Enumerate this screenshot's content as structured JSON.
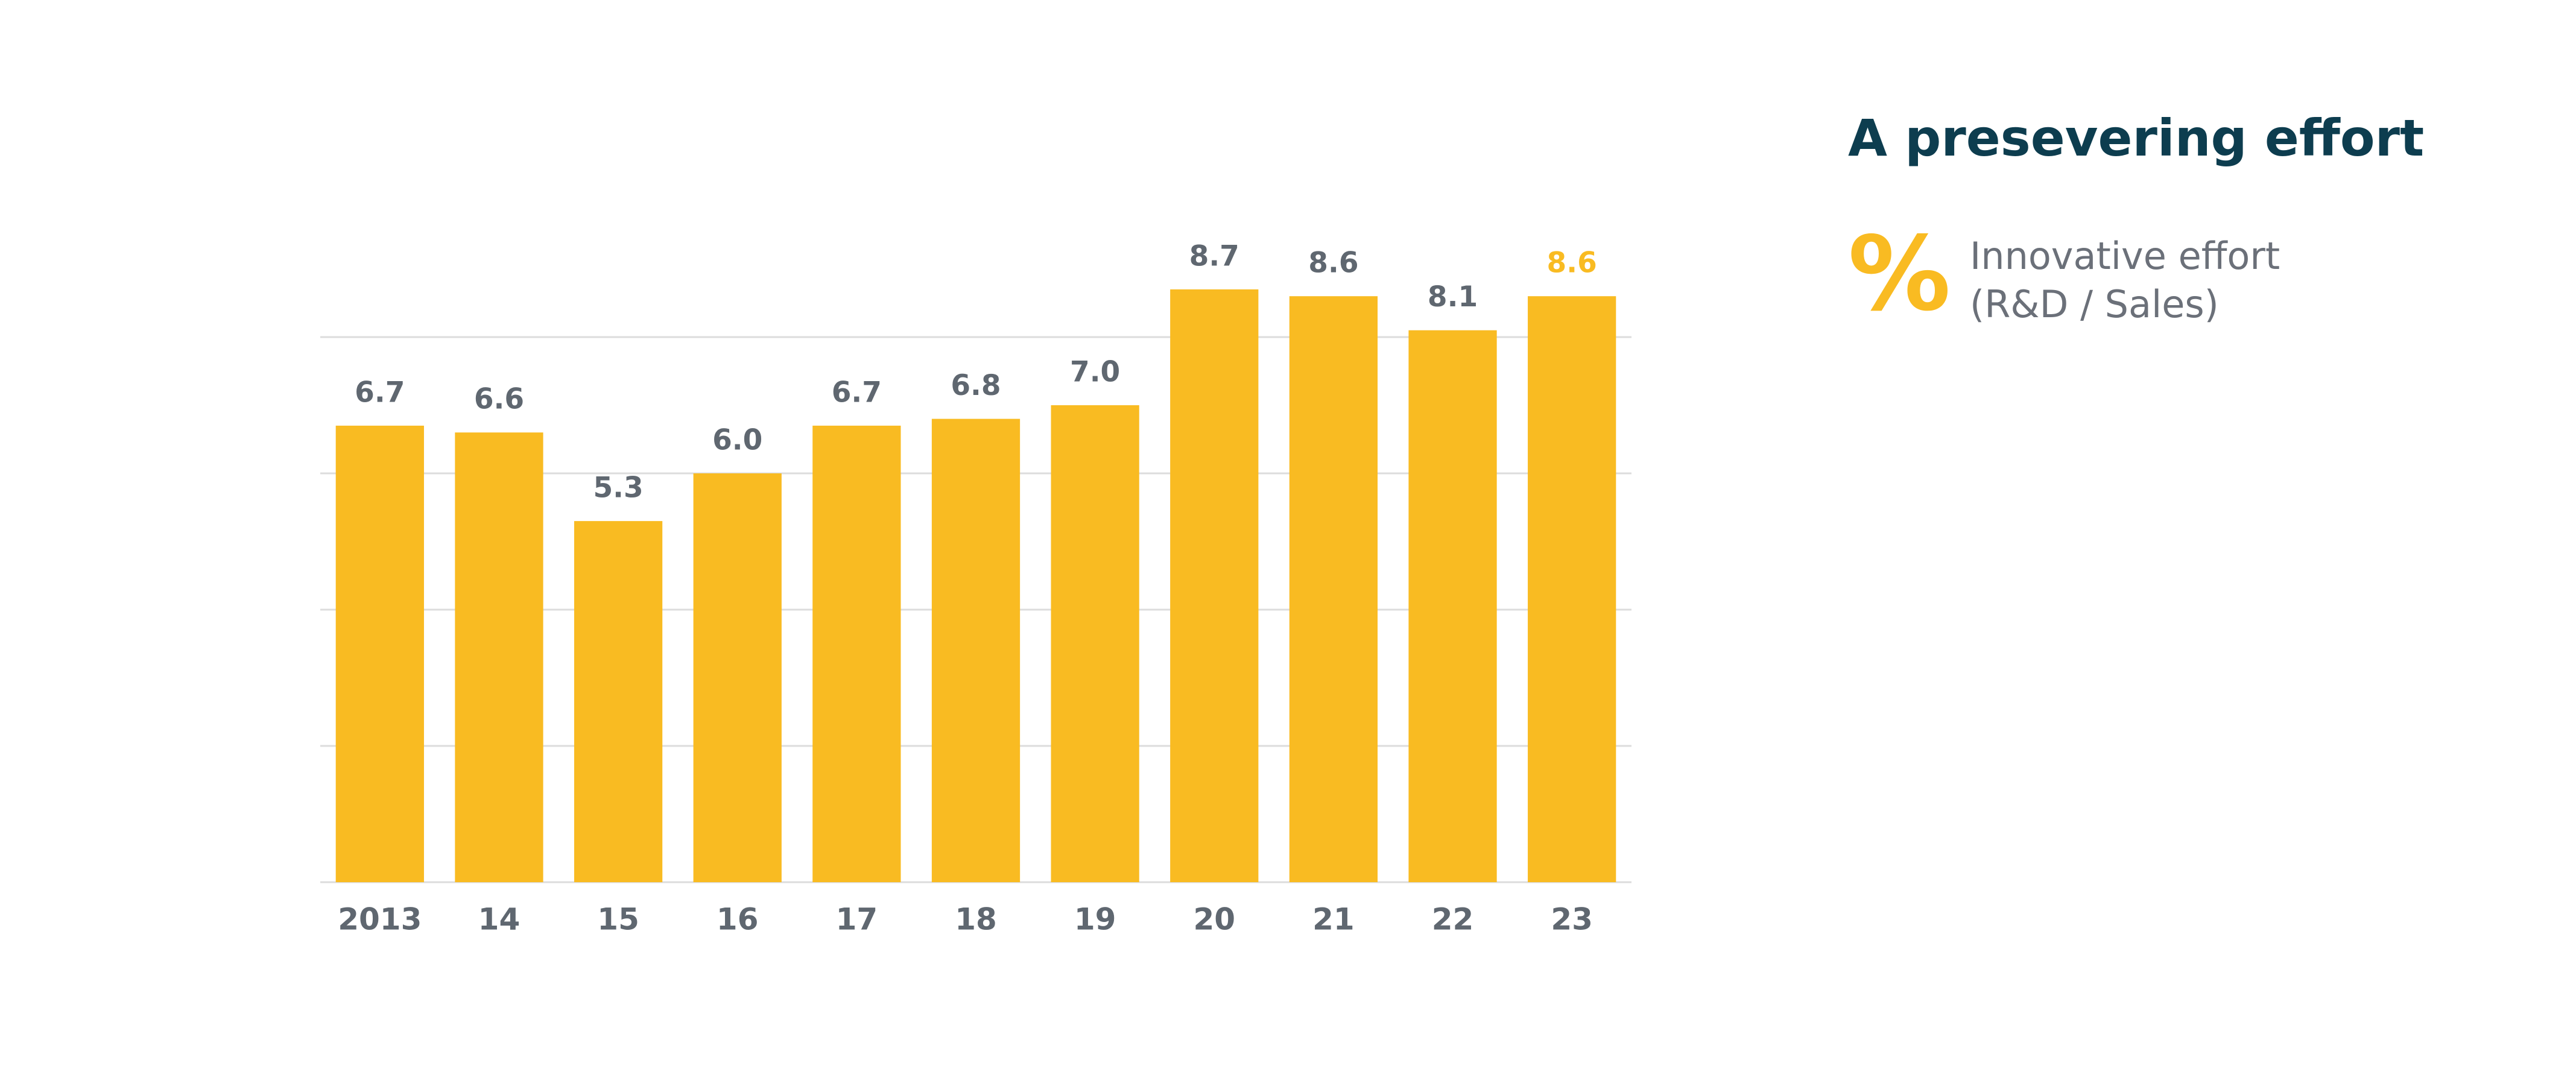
{
  "chart_data": {
    "type": "bar",
    "title": "A presevering effort",
    "unit": "%",
    "categories": [
      "2013",
      "14",
      "15",
      "16",
      "17",
      "18",
      "19",
      "20",
      "21",
      "22",
      "23"
    ],
    "series": [
      {
        "name": "Innovative effort (R&D / Sales)",
        "color": "#f9bb22",
        "values": [
          6.7,
          6.6,
          5.3,
          6.0,
          6.7,
          6.8,
          7.0,
          8.7,
          8.6,
          8.1,
          8.6
        ],
        "value_labels": [
          "6.7",
          "6.6",
          "5.3",
          "6.0",
          "6.7",
          "6.8",
          "7.0",
          "8.7",
          "8.6",
          "8.1",
          "8.6"
        ],
        "value_label_colors": [
          "#5f6770",
          "#5f6770",
          "#5f6770",
          "#5f6770",
          "#5f6770",
          "#5f6770",
          "#5f6770",
          "#5f6770",
          "#5f6770",
          "#5f6770",
          "#f9bb22"
        ]
      }
    ],
    "ylim": [
      0,
      10
    ],
    "yticks": [
      0,
      2,
      4,
      6,
      8
    ],
    "grid": true,
    "title_color": "#0d3d4f",
    "legend_text_color": "#6b7079"
  }
}
